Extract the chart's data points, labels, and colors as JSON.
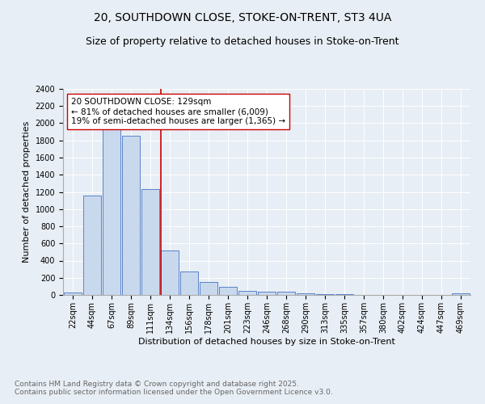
{
  "title_line1": "20, SOUTHDOWN CLOSE, STOKE-ON-TRENT, ST3 4UA",
  "title_line2": "Size of property relative to detached houses in Stoke-on-Trent",
  "xlabel": "Distribution of detached houses by size in Stoke-on-Trent",
  "ylabel": "Number of detached properties",
  "bar_labels": [
    "22sqm",
    "44sqm",
    "67sqm",
    "89sqm",
    "111sqm",
    "134sqm",
    "156sqm",
    "178sqm",
    "201sqm",
    "223sqm",
    "246sqm",
    "268sqm",
    "290sqm",
    "313sqm",
    "335sqm",
    "357sqm",
    "380sqm",
    "402sqm",
    "424sqm",
    "447sqm",
    "469sqm"
  ],
  "bar_values": [
    28,
    1160,
    1960,
    1850,
    1230,
    520,
    275,
    150,
    90,
    45,
    40,
    35,
    18,
    10,
    6,
    4,
    3,
    2,
    2,
    1,
    18
  ],
  "bar_color": "#c9d9ed",
  "bar_edge_color": "#4472c4",
  "vline_x_index": 5,
  "vline_color": "#cc0000",
  "annotation_text": "20 SOUTHDOWN CLOSE: 129sqm\n← 81% of detached houses are smaller (6,009)\n19% of semi-detached houses are larger (1,365) →",
  "annotation_box_color": "#ffffff",
  "annotation_box_edge_color": "#cc0000",
  "ylim": [
    0,
    2400
  ],
  "yticks": [
    0,
    200,
    400,
    600,
    800,
    1000,
    1200,
    1400,
    1600,
    1800,
    2000,
    2200,
    2400
  ],
  "background_color": "#e8eef5",
  "plot_bg_color": "#e8eef5",
  "footer_text": "Contains HM Land Registry data © Crown copyright and database right 2025.\nContains public sector information licensed under the Open Government Licence v3.0.",
  "title_fontsize": 10,
  "subtitle_fontsize": 9,
  "annotation_fontsize": 7.5,
  "footer_fontsize": 6.5,
  "axis_label_fontsize": 8,
  "tick_fontsize": 7
}
